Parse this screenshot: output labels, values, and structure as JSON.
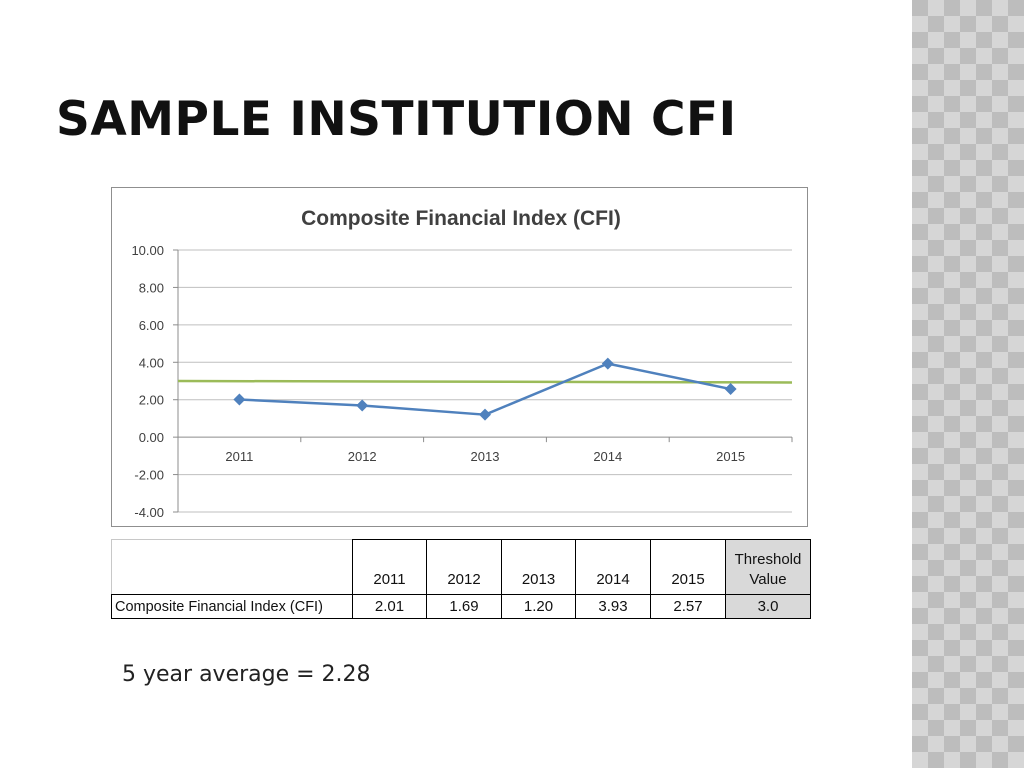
{
  "slide": {
    "title": "SAMPLE INSTITUTION CFI",
    "average_note": "5 year average = 2.28"
  },
  "colors": {
    "series_line": "#4f81bd",
    "threshold_line": "#9bbb59",
    "gridline": "#bfbfbf",
    "threshold_cell": "#d9d9d9"
  },
  "chart_data": {
    "type": "line",
    "title": "Composite Financial Index (CFI)",
    "categories": [
      "2011",
      "2012",
      "2013",
      "2014",
      "2015"
    ],
    "series": [
      {
        "values": [
          2.01,
          1.69,
          1.2,
          3.93,
          2.57
        ],
        "marker": "diamond"
      }
    ],
    "threshold": 3.0,
    "ylim": [
      -4,
      10
    ],
    "yticks": [
      "10.00",
      "8.00",
      "6.00",
      "4.00",
      "2.00",
      "0.00",
      "-2.00",
      "-4.00"
    ],
    "ytick_values": [
      10,
      8,
      6,
      4,
      2,
      0,
      -2,
      -4
    ],
    "grid": true,
    "legend": "none"
  },
  "table": {
    "threshold_header_1": "Threshold",
    "threshold_header_2": "Value",
    "row_label": "Composite Financial Index (CFI)",
    "years": [
      "2011",
      "2012",
      "2013",
      "2014",
      "2015"
    ],
    "values": [
      "2.01",
      "1.69",
      "1.20",
      "3.93",
      "2.57"
    ],
    "threshold_value": "3.0"
  }
}
